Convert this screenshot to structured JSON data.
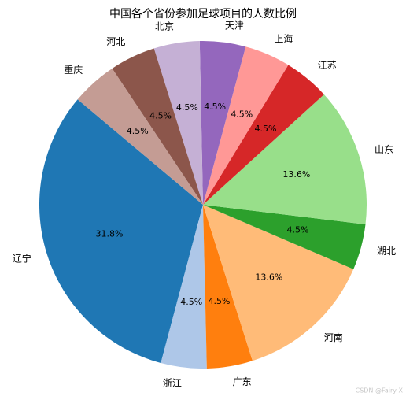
{
  "chart_data": {
    "type": "pie",
    "title": "中国各个省份参加足球项目的人数比例",
    "categories": [
      "辽宁",
      "浙江",
      "广东",
      "河南",
      "湖北",
      "山东",
      "江苏",
      "上海",
      "天津",
      "北京",
      "河北",
      "重庆"
    ],
    "values": [
      31.8,
      4.5,
      4.5,
      13.6,
      4.5,
      13.6,
      4.5,
      4.5,
      4.5,
      4.5,
      4.5,
      4.5
    ],
    "value_labels": [
      "31.8%",
      "4.5%",
      "4.5%",
      "13.6%",
      "4.5%",
      "13.6%",
      "4.5%",
      "4.5%",
      "4.5%",
      "4.5%",
      "4.5%",
      "4.5%"
    ],
    "colors": [
      "#1f77b4",
      "#aec7e8",
      "#ff7f0e",
      "#ffbb78",
      "#2ca02c",
      "#98df8a",
      "#d62728",
      "#ff9896",
      "#9467bd",
      "#c5b0d5",
      "#8c564b",
      "#c49c94"
    ],
    "watermark": "CSDN @Fairy  X"
  }
}
